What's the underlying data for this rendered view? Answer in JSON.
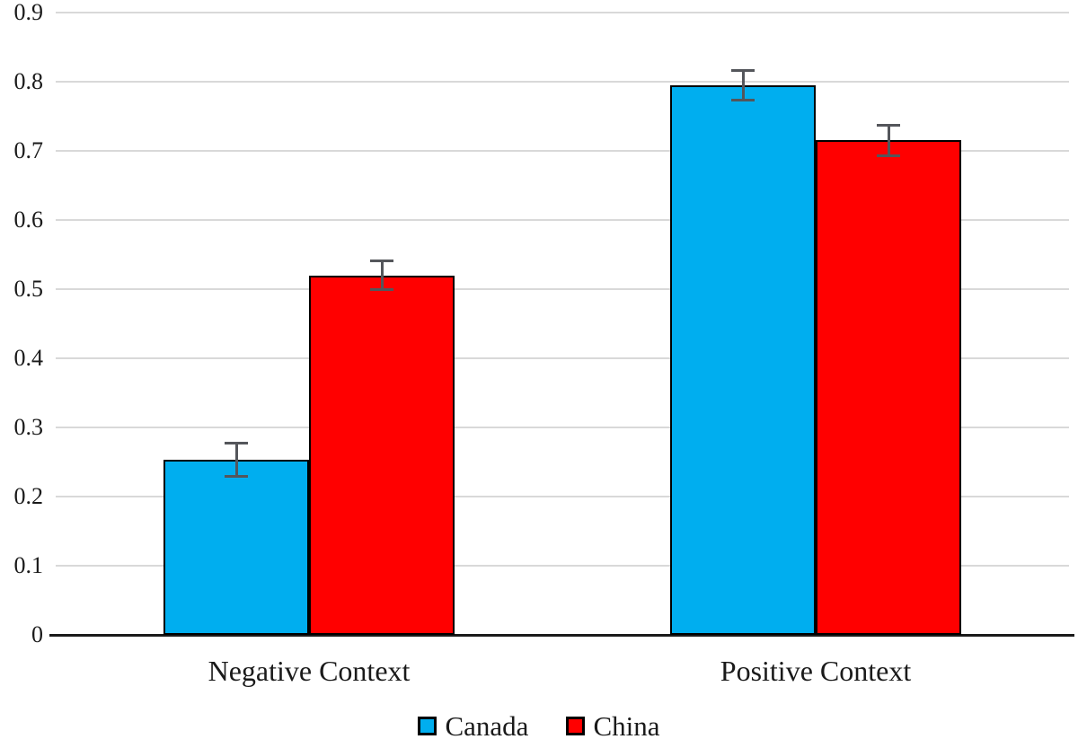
{
  "chart_data": {
    "type": "bar",
    "title": "",
    "xlabel": "",
    "ylabel": "",
    "categories": [
      "Negative Context",
      "Positive Context"
    ],
    "series": [
      {
        "name": "Canada",
        "color": "#00AEEF",
        "values": [
          0.253,
          0.795
        ],
        "errors": [
          0.024,
          0.021
        ]
      },
      {
        "name": "China",
        "color": "#FF0000",
        "values": [
          0.52,
          0.715
        ],
        "errors": [
          0.021,
          0.022
        ]
      }
    ],
    "ylim": [
      0,
      0.9
    ],
    "ytick_step": 0.1,
    "yticks": [
      {
        "v": 0,
        "label": "0"
      },
      {
        "v": 0.1,
        "label": "0.1"
      },
      {
        "v": 0.2,
        "label": "0.2"
      },
      {
        "v": 0.3,
        "label": "0.3"
      },
      {
        "v": 0.4,
        "label": "0.4"
      },
      {
        "v": 0.5,
        "label": "0.5"
      },
      {
        "v": 0.6,
        "label": "0.6"
      },
      {
        "v": 0.7,
        "label": "0.7"
      },
      {
        "v": 0.8,
        "label": "0.8"
      },
      {
        "v": 0.9,
        "label": "0.9"
      }
    ],
    "grid": true,
    "legend_position": "bottom"
  },
  "colors": {
    "background": "#FFFFFF",
    "grid": "#D9D9D9",
    "axis_line": "#1A1A1A",
    "error_bar": "#54565B",
    "bar_border": "#000000",
    "text": "#1A1A1A"
  }
}
